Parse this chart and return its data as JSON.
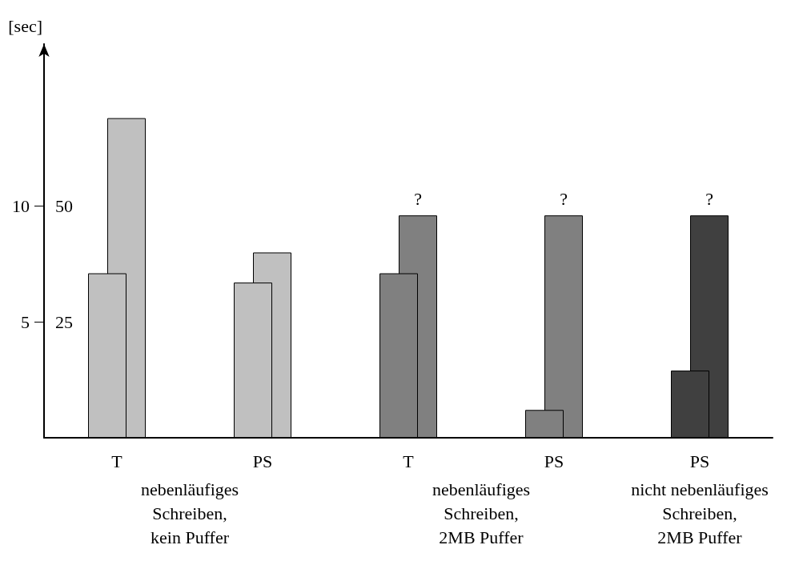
{
  "chart_data": {
    "type": "bar",
    "ylabel": "[sec]",
    "categories": [
      "T",
      "PS",
      "T",
      "PS",
      "PS"
    ],
    "series": [
      {
        "colors": [
          "#c0c0c0",
          "#c0c0c0",
          "#808080",
          "#808080",
          "#404040"
        ],
        "values": [
          7.1,
          6.7,
          7.1,
          1.2,
          2.9
        ]
      },
      {
        "colors": [
          "#c0c0c0",
          "#c0c0c0",
          "#808080",
          "#808080",
          "#404040"
        ],
        "axis": "y2",
        "values": [
          69,
          40,
          48,
          48,
          48
        ],
        "value_labels": [
          null,
          null,
          "?",
          "?",
          "?"
        ]
      }
    ],
    "ylim": [
      0,
      17
    ],
    "yticks": [
      5,
      10
    ],
    "y2lim": [
      0,
      85
    ],
    "y2ticks": [
      25,
      50
    ],
    "annotations": [
      "nebenläufiges\nSchreiben,\nkein Puffer",
      "nebenläufiges\nSchreiben,\n2MB Puffer",
      "nicht nebenläufiges\nSchreiben,\n2MB Puffer"
    ],
    "grid": false
  }
}
